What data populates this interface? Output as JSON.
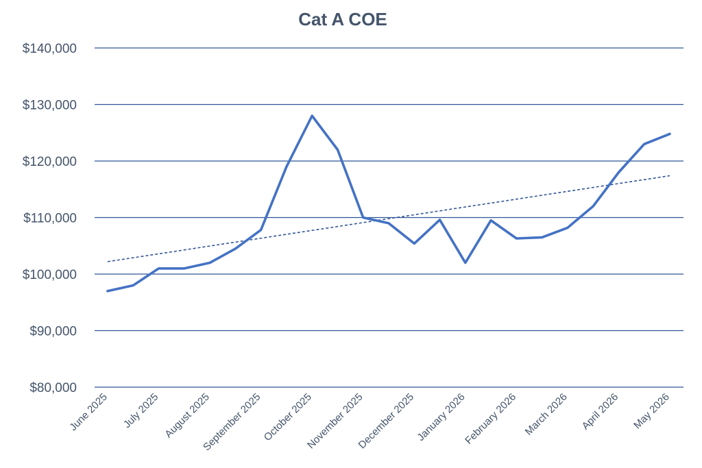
{
  "chart_data": {
    "type": "line",
    "title": "Cat A COE",
    "xlabel": "",
    "ylabel": "",
    "ylim": [
      80000,
      140000
    ],
    "yticks": [
      80000,
      90000,
      100000,
      110000,
      120000,
      130000,
      140000
    ],
    "ytick_labels": [
      "$80,000",
      "$90,000",
      "$100,000",
      "$110,000",
      "$120,000",
      "$130,000",
      "$140,000"
    ],
    "xtick_labels": [
      "June 2025",
      "July 2025",
      "August 2025",
      "September 2025",
      "October 2025",
      "November 2025",
      "December 2025",
      "January 2026",
      "February 2026",
      "March 2026",
      "April 2026",
      "May 2026"
    ],
    "grid": true,
    "legend": "none",
    "series": [
      {
        "color": "#4472c4",
        "style": "solid",
        "values": [
          97000,
          98000,
          101000,
          101000,
          102000,
          104500,
          107800,
          119000,
          128000,
          122000,
          110000,
          109000,
          105400,
          109600,
          102000,
          109500,
          106300,
          106500,
          108200,
          112000,
          118000,
          123000,
          124800
        ]
      },
      {
        "color": "#2f5597",
        "style": "dashed",
        "kind": "linear trendline",
        "start": 102200,
        "end": 117400
      }
    ]
  }
}
